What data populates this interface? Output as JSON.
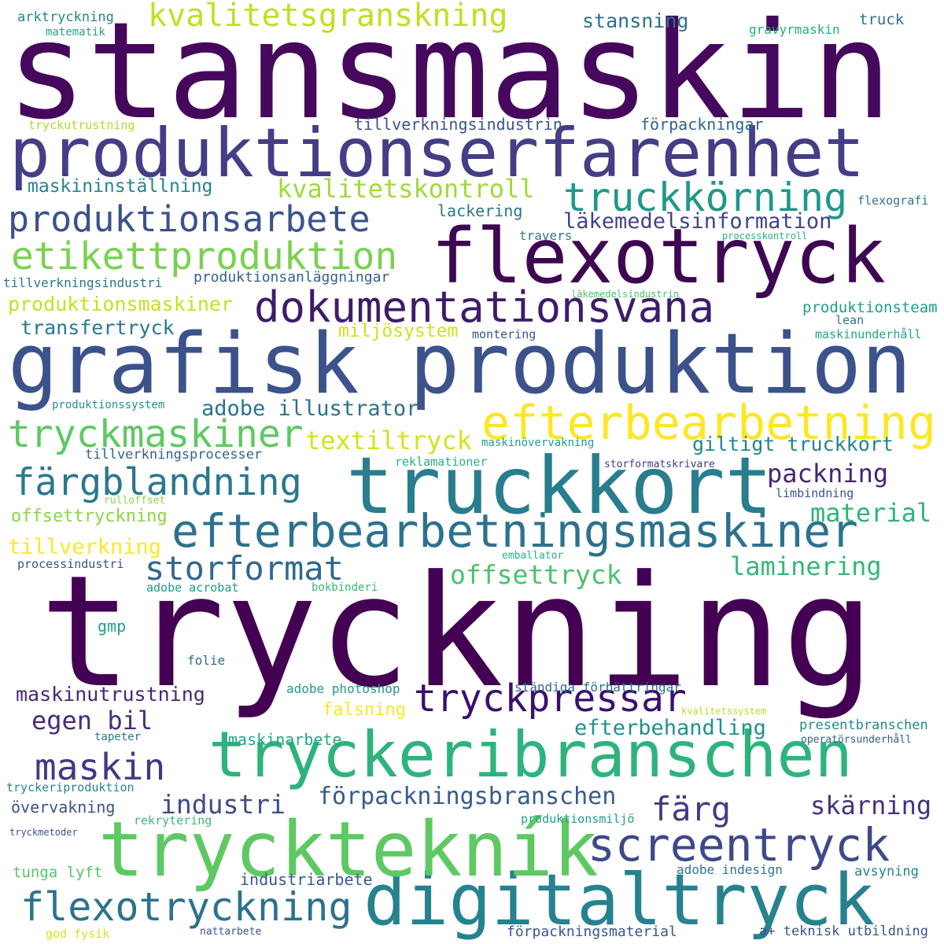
{
  "words": [
    {
      "text": "tryckning",
      "color": "#440154"
    },
    {
      "text": "stansmaskin",
      "color": "#46085c"
    },
    {
      "text": "grafisk produktion",
      "color": "#3b528b"
    },
    {
      "text": "produktionserfarenhet",
      "color": "#433e85"
    },
    {
      "text": "truckkort",
      "color": "#287d8e"
    },
    {
      "text": "flexotryck",
      "color": "#3e0751"
    },
    {
      "text": "tryckeribranschen",
      "color": "#2eb37c"
    },
    {
      "text": "digitaltryck",
      "color": "#26828e"
    },
    {
      "text": "trycktekník",
      "color": "#5ec962"
    },
    {
      "text": "efterbearbetningsmaskiner",
      "color": "#2c728e"
    },
    {
      "text": "efterbearbetning",
      "color": "#fde725"
    },
    {
      "text": "dokumentationsvana",
      "color": "#3f1b6b"
    },
    {
      "text": "screentryck",
      "color": "#3e4989"
    },
    {
      "text": "kvalitetsgranskning",
      "color": "#c2df23"
    },
    {
      "text": "etikettproduktion",
      "color": "#7ad151"
    },
    {
      "text": "produktionsarbete",
      "color": "#3b528b"
    },
    {
      "text": "truckkörning",
      "color": "#1f988b"
    },
    {
      "text": "tryckmaskiner",
      "color": "#5ec962"
    },
    {
      "text": "tryckpressar",
      "color": "#3b0f70"
    },
    {
      "text": "flexotryckning",
      "color": "#2c728e"
    },
    {
      "text": "färgblandning",
      "color": "#2a788e"
    },
    {
      "text": "storformat",
      "color": "#31688e"
    },
    {
      "text": "maskin",
      "color": "#453781"
    },
    {
      "text": "kvalitetskontroll",
      "color": "#a0da39"
    },
    {
      "text": "läkemedelsinformation",
      "color": "#414487"
    },
    {
      "text": "textiltryck",
      "color": "#d5e21a"
    },
    {
      "text": "adobe illustrator",
      "color": "#2c718e"
    },
    {
      "text": "giltigt truckkort",
      "color": "#25848e"
    },
    {
      "text": "packning",
      "color": "#482475"
    },
    {
      "text": "offsettryck",
      "color": "#4ac16d"
    },
    {
      "text": "laminering",
      "color": "#35b779"
    },
    {
      "text": "material",
      "color": "#2fb47c"
    },
    {
      "text": "industri",
      "color": "#3e4a89"
    },
    {
      "text": "färg",
      "color": "#443a83"
    },
    {
      "text": "förpackningsbranschen",
      "color": "#375b8d"
    },
    {
      "text": "skärning",
      "color": "#46327e"
    },
    {
      "text": "egen bil",
      "color": "#472c7a"
    },
    {
      "text": "maskinutrustning",
      "color": "#482878"
    },
    {
      "text": "efterbehandling",
      "color": "#21908d"
    },
    {
      "text": "maskininställning",
      "color": "#25858e"
    },
    {
      "text": "lackering",
      "color": "#2a768e"
    },
    {
      "text": "tillverkningsindustrin",
      "color": "#39558c"
    },
    {
      "text": "förpackningar",
      "color": "#33638d"
    },
    {
      "text": "stansning",
      "color": "#2d708e"
    },
    {
      "text": "produktionsmaskiner",
      "color": "#c8e020"
    },
    {
      "text": "transfertryck",
      "color": "#2a788e"
    },
    {
      "text": "miljösystem",
      "color": "#d0e11c"
    },
    {
      "text": "produktionsanläggningar",
      "color": "#355f8d"
    },
    {
      "text": "produktionsteam",
      "color": "#1f9e89"
    },
    {
      "text": "tillverkning",
      "color": "#fde725"
    },
    {
      "text": "offsettryckning",
      "color": "#8bd646"
    },
    {
      "text": "maskinarbete",
      "color": "#22a785"
    },
    {
      "text": "falsning",
      "color": "#fbe723"
    },
    {
      "text": "övervakning",
      "color": "#3b528b"
    },
    {
      "text": "industriarbete",
      "color": "#38588c"
    },
    {
      "text": "tunga lyft",
      "color": "#54c568"
    },
    {
      "text": "tillverkningsprocesser",
      "color": "#34618d"
    },
    {
      "text": "gmp",
      "color": "#1fa088"
    },
    {
      "text": "adobe photoshop",
      "color": "#1e9b8a"
    },
    {
      "text": "ständiga förbättringar",
      "color": "#2e6e8e"
    },
    {
      "text": "förpackningsmaterial",
      "color": "#39568c"
    },
    {
      "text": "adobe indesign",
      "color": "#2b758e"
    },
    {
      "text": "avsyning",
      "color": "#25838e"
    },
    {
      "text": "presentbranschen",
      "color": "#23898e"
    },
    {
      "text": "a+ teknisk utbildning",
      "color": "#3b528b"
    },
    {
      "text": "arktryckning",
      "color": "#24878e"
    },
    {
      "text": "matematik",
      "color": "#20a386"
    },
    {
      "text": "truck",
      "color": "#2d718e"
    },
    {
      "text": "gravyrmaskin",
      "color": "#25ab82"
    },
    {
      "text": "tryckutrustning",
      "color": "#addc30"
    },
    {
      "text": "flexografi",
      "color": "#2a788e"
    },
    {
      "text": "travers",
      "color": "#2a788e"
    },
    {
      "text": "processkontroll",
      "color": "#29af7f"
    },
    {
      "text": "tillverkningsindustri",
      "color": "#2a778e"
    },
    {
      "text": "läkemedelsindustrin",
      "color": "#4ac16d"
    },
    {
      "text": "lean",
      "color": "#2b758e"
    },
    {
      "text": "montering",
      "color": "#3b528b"
    },
    {
      "text": "maskinunderhåll",
      "color": "#20a486"
    },
    {
      "text": "produktionssystem",
      "color": "#21918c"
    },
    {
      "text": "maskinövervakning",
      "color": "#1fa088"
    },
    {
      "text": "reklamationer",
      "color": "#28ae80"
    },
    {
      "text": "storformatskrivare",
      "color": "#443a83"
    },
    {
      "text": "rulloffset",
      "color": "#8bd646"
    },
    {
      "text": "limbindning",
      "color": "#39558c"
    },
    {
      "text": "emballator",
      "color": "#2ab07f"
    },
    {
      "text": "processindustri",
      "color": "#3b528b"
    },
    {
      "text": "adobe acrobat",
      "color": "#1f988b"
    },
    {
      "text": "bokbinderi",
      "color": "#35b779"
    },
    {
      "text": "folie",
      "color": "#31688e"
    },
    {
      "text": "kvalitetssystem",
      "color": "#bddf26"
    },
    {
      "text": "operatörsunderhåll",
      "color": "#34618d"
    },
    {
      "text": "tapeter",
      "color": "#2a778e"
    },
    {
      "text": "tryckeriproduktion",
      "color": "#23898e"
    },
    {
      "text": "rekrytering",
      "color": "#3bbb75"
    },
    {
      "text": "produktionsmiljö",
      "color": "#1fa187"
    },
    {
      "text": "tryckmetoder",
      "color": "#3b528b"
    },
    {
      "text": "god fysik",
      "color": "#d8e219"
    },
    {
      "text": "nattarbete",
      "color": "#3b528b"
    }
  ]
}
